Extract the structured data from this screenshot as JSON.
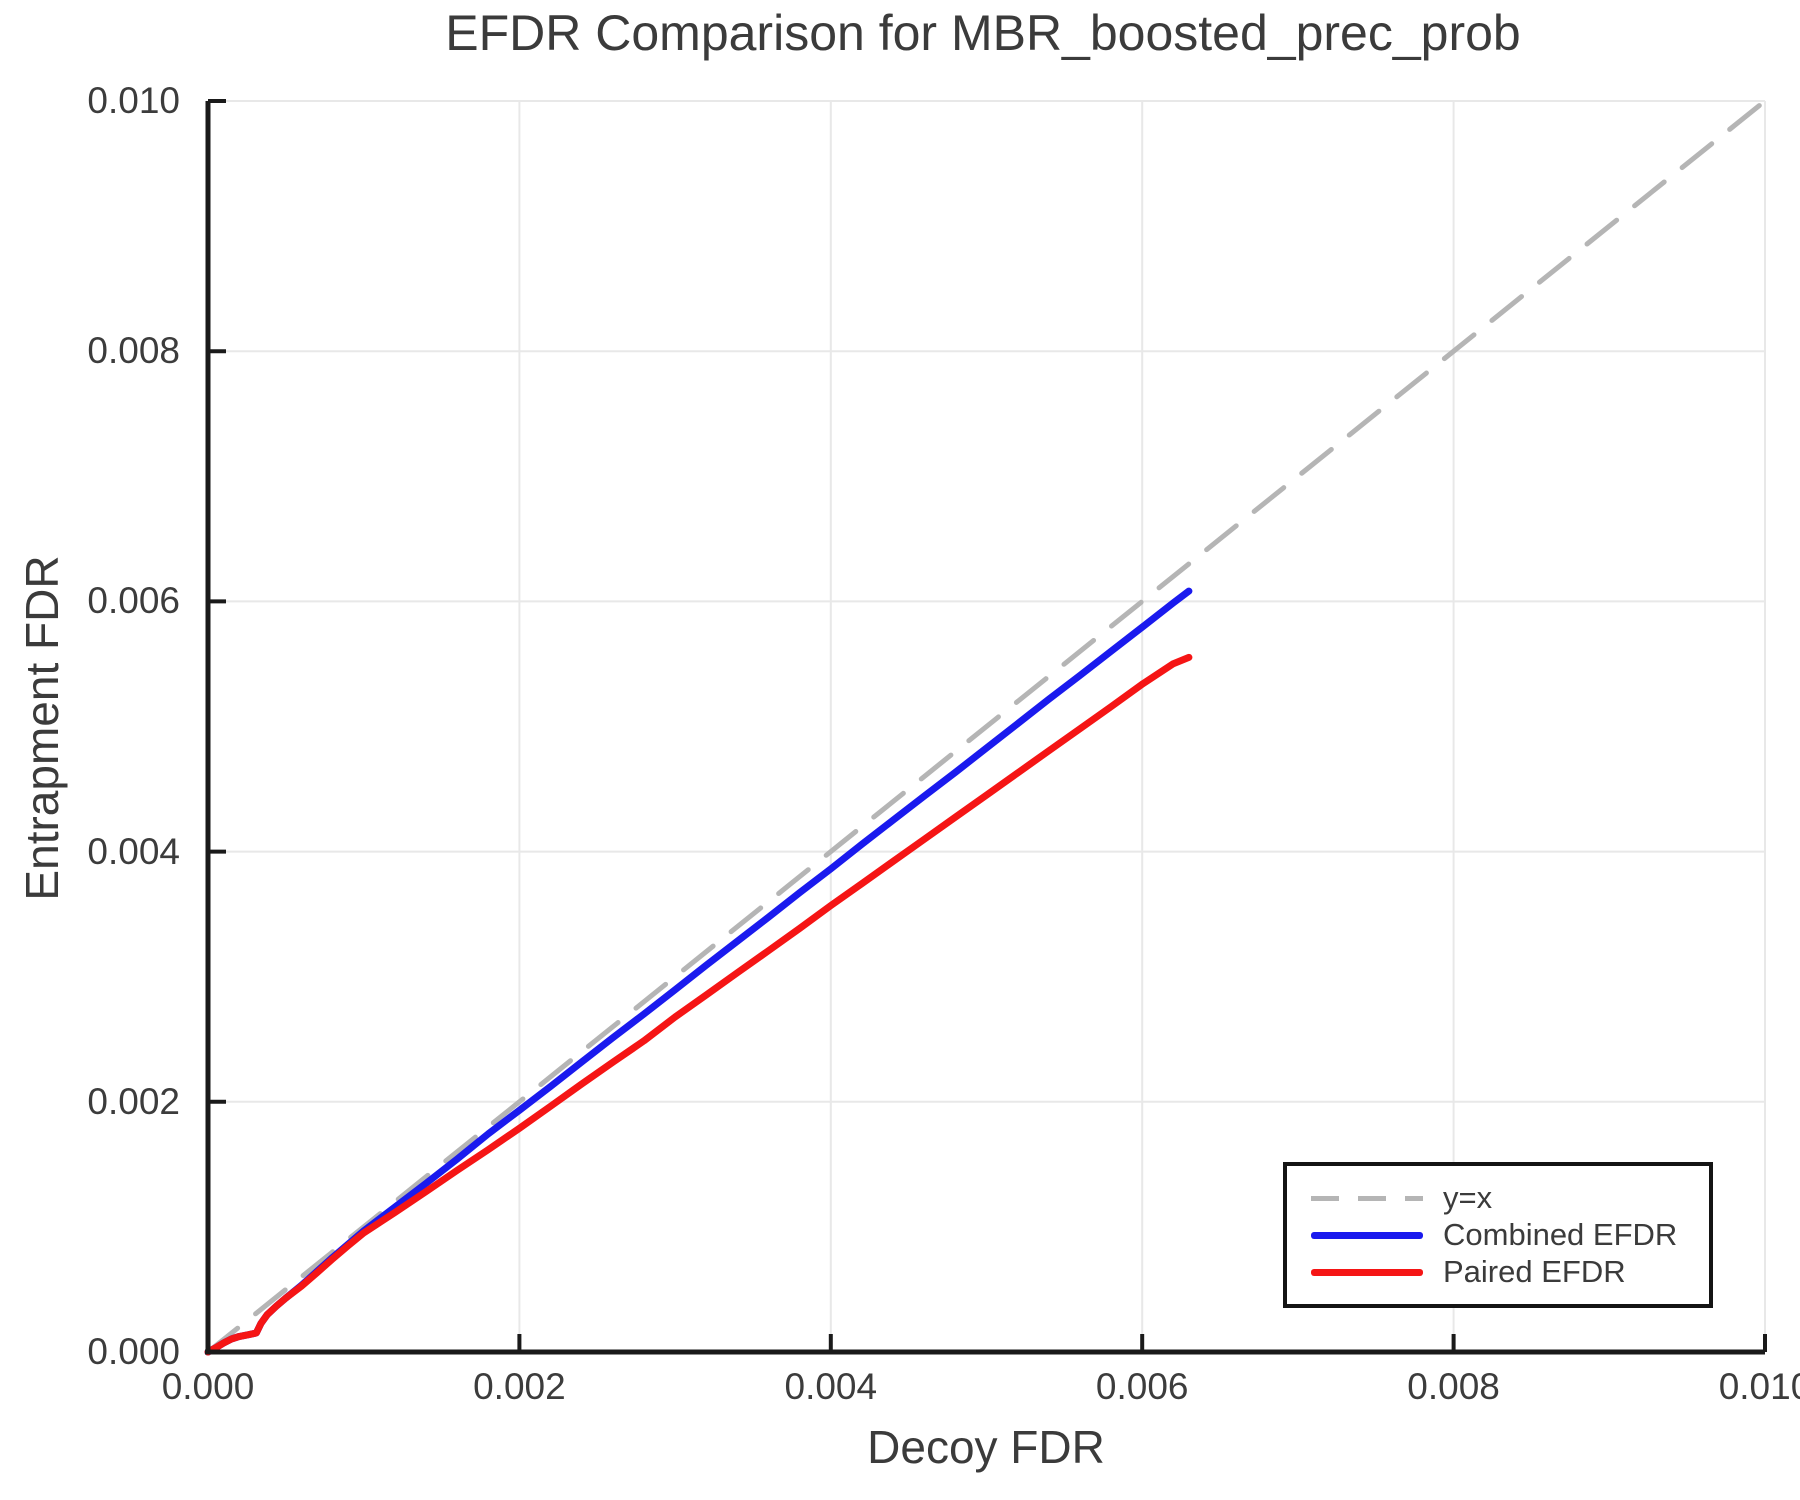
{
  "chart_data": {
    "type": "line",
    "title": "EFDR Comparison for MBR_boosted_prec_prob",
    "xlabel": "Decoy FDR",
    "ylabel": "Entrapment FDR",
    "xlim": [
      0.0,
      0.01
    ],
    "ylim": [
      0.0,
      0.01
    ],
    "grid": true,
    "legend_position": "lower right",
    "x_ticks": [
      0.0,
      0.002,
      0.004,
      0.006,
      0.008,
      0.01
    ],
    "x_tick_labels": [
      "0.000",
      "0.002",
      "0.004",
      "0.006",
      "0.008",
      "0.010"
    ],
    "y_ticks": [
      0.0,
      0.002,
      0.004,
      0.006,
      0.008,
      0.01
    ],
    "y_tick_labels": [
      "0.000",
      "0.002",
      "0.004",
      "0.006",
      "0.008",
      "0.010"
    ],
    "colors": {
      "reference": "#b5b5b5",
      "combined": "#1a1aee",
      "paired": "#f51515",
      "grid": "#e8e8e8",
      "axis": "#1a1a1a",
      "text": "#3b3b3b"
    },
    "series": [
      {
        "name": "y=x",
        "style": "dashed",
        "color": "#b5b5b5",
        "width": 5,
        "points": [
          [
            0.0,
            0.0
          ],
          [
            0.01,
            0.01
          ]
        ]
      },
      {
        "name": "Combined EFDR",
        "style": "solid",
        "color": "#1a1aee",
        "width": 7,
        "points": [
          [
            0.0,
            0.0
          ],
          [
            5e-05,
            3.4e-05
          ],
          [
            0.0001,
            7.2e-05
          ],
          [
            0.00015,
            0.000104
          ],
          [
            0.0002,
            0.000124
          ],
          [
            0.00026,
            0.000138
          ],
          [
            0.00031,
            0.000152
          ],
          [
            0.00034,
            0.000228
          ],
          [
            0.00038,
            0.000298
          ],
          [
            0.00044,
            0.000368
          ],
          [
            0.0005,
            0.000432
          ],
          [
            0.0006,
            0.000532
          ],
          [
            0.0007,
            0.000644
          ],
          [
            0.0008,
            0.000756
          ],
          [
            0.0009,
            0.000862
          ],
          [
            0.001,
            0.000968
          ],
          [
            0.0012,
            0.001158
          ],
          [
            0.0014,
            0.001348
          ],
          [
            0.0016,
            0.001542
          ],
          [
            0.0018,
            0.001744
          ],
          [
            0.002,
            0.001932
          ],
          [
            0.0022,
            0.002122
          ],
          [
            0.0024,
            0.002318
          ],
          [
            0.0026,
            0.002512
          ],
          [
            0.0028,
            0.002702
          ],
          [
            0.003,
            0.002896
          ],
          [
            0.0032,
            0.003092
          ],
          [
            0.0034,
            0.003284
          ],
          [
            0.0036,
            0.003476
          ],
          [
            0.0038,
            0.003672
          ],
          [
            0.004,
            0.003862
          ],
          [
            0.0042,
            0.004058
          ],
          [
            0.0044,
            0.004252
          ],
          [
            0.0046,
            0.004444
          ],
          [
            0.0048,
            0.004634
          ],
          [
            0.005,
            0.004828
          ],
          [
            0.0052,
            0.005022
          ],
          [
            0.0054,
            0.005218
          ],
          [
            0.0056,
            0.005408
          ],
          [
            0.0058,
            0.005602
          ],
          [
            0.006,
            0.005794
          ],
          [
            0.0062,
            0.005988
          ],
          [
            0.0063,
            0.006082
          ]
        ]
      },
      {
        "name": "Paired EFDR",
        "style": "solid",
        "color": "#f51515",
        "width": 7,
        "points": [
          [
            0.0,
            0.0
          ],
          [
            5e-05,
            3.4e-05
          ],
          [
            0.0001,
            7.2e-05
          ],
          [
            0.00015,
            0.000104
          ],
          [
            0.0002,
            0.000124
          ],
          [
            0.00026,
            0.000138
          ],
          [
            0.00031,
            0.000152
          ],
          [
            0.00034,
            0.000228
          ],
          [
            0.00038,
            0.000298
          ],
          [
            0.00044,
            0.000368
          ],
          [
            0.0005,
            0.000432
          ],
          [
            0.0006,
            0.000526
          ],
          [
            0.0007,
            0.000634
          ],
          [
            0.0008,
            0.000744
          ],
          [
            0.0009,
            0.00085
          ],
          [
            0.001,
            0.000952
          ],
          [
            0.0012,
            0.001114
          ],
          [
            0.0014,
            0.001282
          ],
          [
            0.0016,
            0.001452
          ],
          [
            0.0018,
            0.001618
          ],
          [
            0.002,
            0.001788
          ],
          [
            0.0022,
            0.001964
          ],
          [
            0.0024,
            0.002142
          ],
          [
            0.0026,
            0.002316
          ],
          [
            0.0028,
            0.002488
          ],
          [
            0.003,
            0.002678
          ],
          [
            0.0032,
            0.002854
          ],
          [
            0.0034,
            0.003032
          ],
          [
            0.0036,
            0.003208
          ],
          [
            0.0038,
            0.003386
          ],
          [
            0.004,
            0.003568
          ],
          [
            0.0042,
            0.003744
          ],
          [
            0.0044,
            0.003922
          ],
          [
            0.0046,
            0.004098
          ],
          [
            0.0048,
            0.004276
          ],
          [
            0.005,
            0.004452
          ],
          [
            0.0052,
            0.004628
          ],
          [
            0.0054,
            0.004806
          ],
          [
            0.0056,
            0.004982
          ],
          [
            0.0058,
            0.005158
          ],
          [
            0.006,
            0.005338
          ],
          [
            0.0062,
            0.005502
          ],
          [
            0.0063,
            0.005552
          ]
        ]
      }
    ]
  }
}
